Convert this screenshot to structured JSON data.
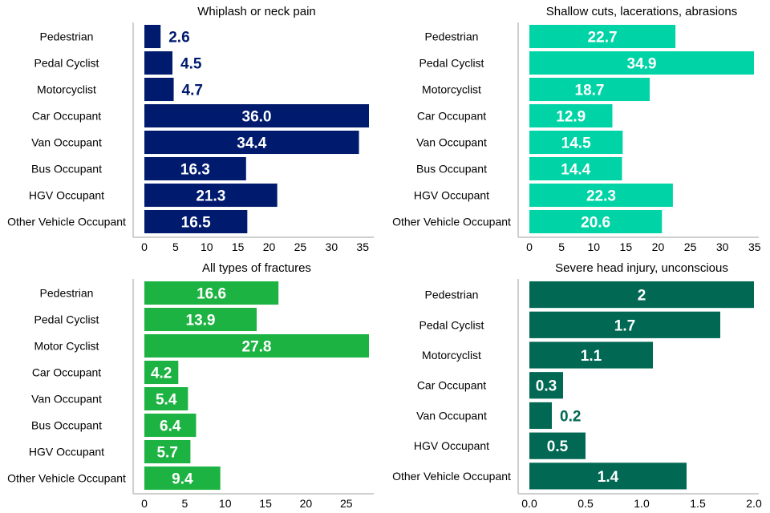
{
  "chart_data": [
    {
      "type": "bar",
      "orientation": "horizontal",
      "title": "Whiplash or neck pain",
      "categories": [
        "Pedestrian",
        "Pedal Cyclist",
        "Motorcyclist",
        "Car Occupant",
        "Van Occupant",
        "Bus Occupant",
        "HGV Occupant",
        "Other Vehicle Occupant"
      ],
      "values": [
        2.6,
        4.5,
        4.7,
        36.0,
        34.4,
        16.3,
        21.3,
        16.5
      ],
      "labels": [
        "2.6",
        "4.5",
        "4.7",
        "36.0",
        "34.4",
        "16.3",
        "21.3",
        "16.5"
      ],
      "color": "#001a6e",
      "xlim": [
        0,
        36
      ],
      "ticks": [
        "0",
        "5",
        "10",
        "15",
        "20",
        "25",
        "30",
        "35"
      ],
      "tick_values": [
        0,
        5,
        10,
        15,
        20,
        25,
        30,
        35
      ],
      "xlabel": "",
      "ylabel": "",
      "grid": false,
      "legend": "none"
    },
    {
      "type": "bar",
      "orientation": "horizontal",
      "title": "Shallow cuts, lacerations, abrasions",
      "categories": [
        "Pedestrian",
        "Pedal Cyclist",
        "Motorcyclist",
        "Car Occupant",
        "Van Occupant",
        "Bus Occupant",
        "HGV Occupant",
        "Other Vehicle Occupant"
      ],
      "values": [
        22.7,
        34.9,
        18.7,
        12.9,
        14.5,
        14.4,
        22.3,
        20.6
      ],
      "labels": [
        "22.7",
        "34.9",
        "18.7",
        "12.9",
        "14.5",
        "14.4",
        "22.3",
        "20.6"
      ],
      "color": "#00d4a6",
      "xlim": [
        0,
        34.9
      ],
      "ticks": [
        "0",
        "5",
        "10",
        "15",
        "20",
        "25",
        "30",
        "35"
      ],
      "tick_values": [
        0,
        5,
        10,
        15,
        20,
        25,
        30,
        35
      ],
      "xlabel": "",
      "ylabel": "",
      "grid": false,
      "legend": "none"
    },
    {
      "type": "bar",
      "orientation": "horizontal",
      "title": "All types of fractures",
      "categories": [
        "Pedestrian",
        "Pedal Cyclist",
        "Motor Cyclist",
        "Car Occupant",
        "Van Occupant",
        "Bus Occupant",
        "HGV Occupant",
        "Other Vehicle Occupant"
      ],
      "values": [
        16.6,
        13.9,
        27.8,
        4.2,
        5.4,
        6.4,
        5.7,
        9.4
      ],
      "labels": [
        "16.6",
        "13.9",
        "27.8",
        "4.2",
        "5.4",
        "6.4",
        "5.7",
        "9.4"
      ],
      "color": "#1db342",
      "xlim": [
        0,
        27.8
      ],
      "ticks": [
        "0",
        "5",
        "10",
        "15",
        "20",
        "25"
      ],
      "tick_values": [
        0,
        5,
        10,
        15,
        20,
        25
      ],
      "xlabel": "",
      "ylabel": "",
      "grid": false,
      "legend": "none"
    },
    {
      "type": "bar",
      "orientation": "horizontal",
      "title": "Severe head injury, unconscious",
      "categories": [
        "Pedestrian",
        "Pedal Cyclist",
        "Motorcyclist",
        "Car Occupant",
        "Van Occupant",
        "HGV Occupant",
        "Other Vehicle Occupant"
      ],
      "values": [
        2,
        1.7,
        1.1,
        0.3,
        0.2,
        0.5,
        1.4
      ],
      "labels": [
        "2",
        "1.7",
        "1.1",
        "0.3",
        "0.2",
        "0.5",
        "1.4"
      ],
      "color": "#006853",
      "xlim": [
        0,
        2
      ],
      "ticks": [
        "0.0",
        "0.5",
        "1.0",
        "1.5",
        "2.0"
      ],
      "tick_values": [
        0,
        0.5,
        1.0,
        1.5,
        2.0
      ],
      "xlabel": "",
      "ylabel": "",
      "grid": false,
      "legend": "none"
    }
  ]
}
